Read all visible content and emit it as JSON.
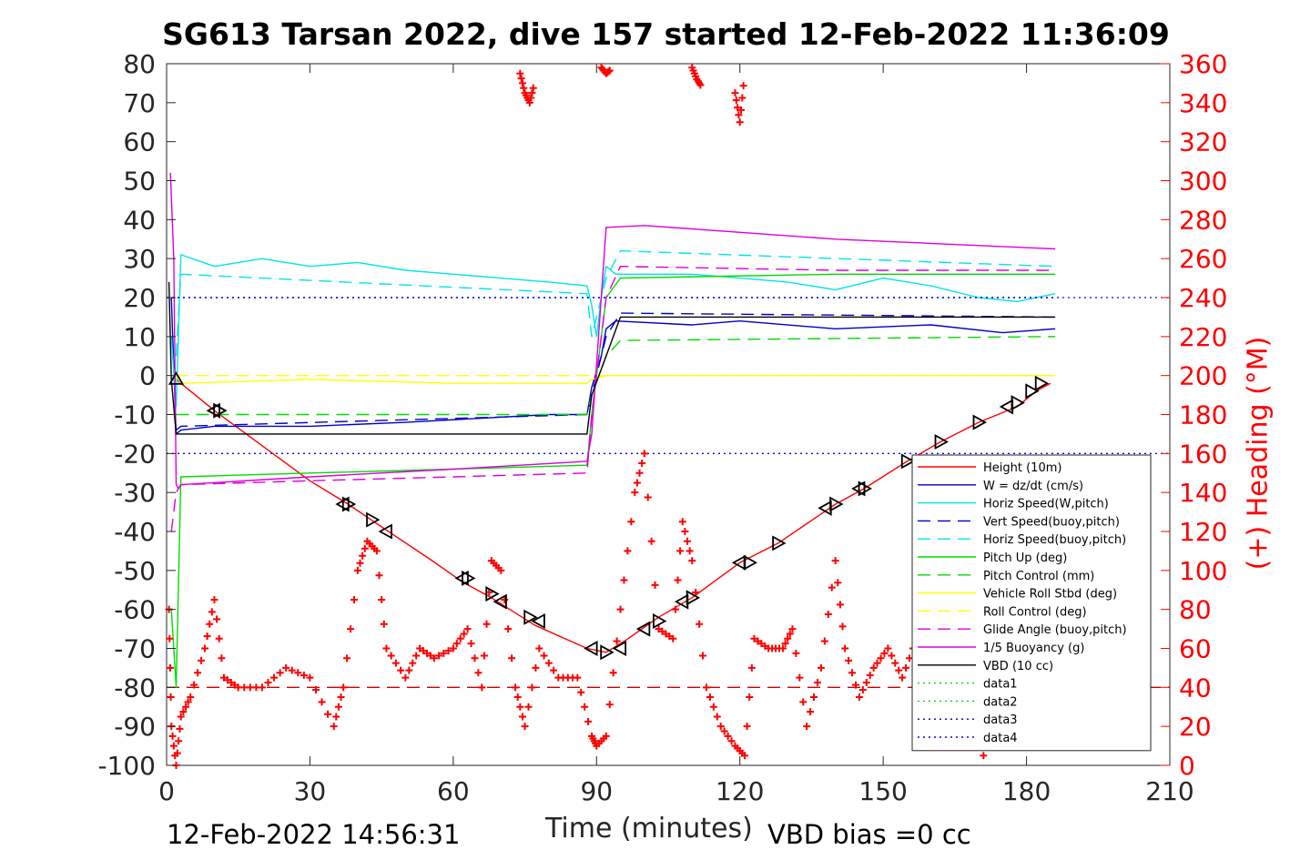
{
  "chart_data": {
    "type": "line",
    "title": "SG613 Tarsan 2022, dive 157 started 12-Feb-2022 11:36:09",
    "xlabel": "Time (minutes)",
    "ylabel": "",
    "y2label": "(+) Heading (°M)",
    "footer_left": "12-Feb-2022 14:56:31",
    "footer_right": "VBD bias =0 cc",
    "xlim": [
      0,
      210
    ],
    "ylim": [
      -100,
      80
    ],
    "y2lim": [
      0,
      360
    ],
    "x_ticks": [
      "0",
      "30",
      "60",
      "90",
      "120",
      "150",
      "180",
      "210"
    ],
    "y_ticks": [
      "80",
      "70",
      "60",
      "50",
      "40",
      "30",
      "20",
      "10",
      "0",
      "-10",
      "-20",
      "-30",
      "-40",
      "-50",
      "-60",
      "-70",
      "-80",
      "-90",
      "-100"
    ],
    "y2_ticks": [
      "360",
      "340",
      "320",
      "300",
      "280",
      "260",
      "240",
      "220",
      "200",
      "180",
      "160",
      "140",
      "120",
      "100",
      "80",
      "60",
      "40",
      "20",
      "0"
    ],
    "legend_position": "bottom-right",
    "series": [
      {
        "name": "Height (10m)",
        "color": "#ff0000",
        "style": "solid",
        "x": [
          2,
          10,
          20,
          30,
          38,
          44,
          55,
          62,
          68,
          77,
          88,
          92,
          96,
          103,
          110,
          120,
          128,
          140,
          146,
          155,
          162,
          170,
          178,
          182,
          185
        ],
        "y": [
          -1,
          -9,
          -18,
          -27,
          -33,
          -38,
          -47,
          -53,
          -57,
          -64,
          -70,
          -71,
          -68,
          -62,
          -57,
          -48,
          -43,
          -33,
          -29,
          -22,
          -17,
          -12,
          -8,
          -4,
          -2
        ]
      },
      {
        "name": "W = dz/dt (cm/s)",
        "color": "#0000cc",
        "style": "solid",
        "x": [
          1,
          2,
          3,
          10,
          30,
          50,
          65,
          80,
          88,
          89,
          91,
          92,
          94,
          110,
          120,
          140,
          160,
          175,
          186
        ],
        "y": [
          20,
          -15,
          -14,
          -13,
          -13,
          -12,
          -11,
          -10,
          -10,
          -3,
          5,
          12,
          14,
          13,
          14,
          12,
          13,
          11,
          12
        ]
      },
      {
        "name": "Horiz Speed(W,pitch)",
        "color": "#00e5e5",
        "style": "solid",
        "x": [
          1,
          2,
          3,
          10,
          20,
          30,
          40,
          50,
          60,
          70,
          80,
          88,
          89,
          90,
          91,
          92,
          94,
          110,
          120,
          130,
          140,
          150,
          160,
          170,
          178,
          186
        ],
        "y": [
          10,
          -8,
          31,
          28,
          30,
          28,
          29,
          27,
          26,
          25,
          24,
          23,
          18,
          10,
          20,
          28,
          26,
          26,
          25,
          24,
          22,
          25,
          23,
          20,
          19,
          21
        ]
      },
      {
        "name": "Vert Speed(buoy,pitch)",
        "color": "#0000cc",
        "style": "dashed",
        "x": [
          2,
          3,
          88,
          89,
          92,
          95,
          186
        ],
        "y": [
          -14,
          -13,
          -10,
          -5,
          10,
          16,
          15
        ]
      },
      {
        "name": "Horiz Speed(buoy,pitch)",
        "color": "#00e5e5",
        "style": "dashed",
        "x": [
          2,
          3,
          88,
          89,
          92,
          95,
          186
        ],
        "y": [
          5,
          26,
          21,
          10,
          25,
          32,
          28
        ]
      },
      {
        "name": "Pitch Up (deg)",
        "color": "#00dd00",
        "style": "solid",
        "x": [
          1,
          2,
          3,
          30,
          60,
          88,
          89,
          92,
          95,
          140,
          186
        ],
        "y": [
          -60,
          -80,
          -26,
          -25,
          -24,
          -23,
          -10,
          20,
          25,
          26,
          26
        ]
      },
      {
        "name": "Pitch Control (mm)",
        "color": "#00dd00",
        "style": "dashed",
        "x": [
          2,
          3,
          88,
          89,
          92,
          95,
          186
        ],
        "y": [
          -10,
          -10,
          -10,
          -5,
          5,
          9,
          10
        ]
      },
      {
        "name": "Vehicle Roll Stbd (deg)",
        "color": "#ffff00",
        "style": "solid",
        "x": [
          2,
          3,
          30,
          60,
          88,
          89,
          92,
          95,
          140,
          186
        ],
        "y": [
          0,
          -2,
          -1,
          -2,
          -2,
          -1,
          0,
          0,
          0,
          0
        ]
      },
      {
        "name": "Roll Control (deg)",
        "color": "#ffff00",
        "style": "dashed",
        "x": [
          2,
          10,
          40,
          70,
          88,
          92,
          120,
          160,
          186
        ],
        "y": [
          0,
          0,
          0,
          0,
          0,
          0,
          0,
          0,
          0
        ]
      },
      {
        "name": "Glide Angle (buoy,pitch)",
        "color": "#dd00dd",
        "style": "dashed",
        "x": [
          1,
          2,
          3,
          30,
          60,
          88,
          89,
          92,
          95,
          140,
          186
        ],
        "y": [
          -40,
          -30,
          -28,
          -27,
          -26,
          -25,
          -10,
          20,
          28,
          27,
          27
        ]
      },
      {
        "name": "1/5 Buoyancy (g)",
        "color": "#dd00dd",
        "style": "solid",
        "x": [
          0.8,
          1.5,
          2,
          2.5,
          3,
          30,
          60,
          88,
          89,
          92,
          100,
          140,
          186
        ],
        "y": [
          52,
          30,
          -28,
          -29,
          -28,
          -26,
          -24,
          -22,
          -15,
          38,
          38.5,
          35,
          32.5
        ]
      },
      {
        "name": "VBD (10 cc)",
        "color": "#000000",
        "style": "solid",
        "x": [
          0.5,
          1,
          2,
          3,
          88,
          89,
          92,
          95,
          186
        ],
        "y": [
          24,
          -1,
          -15,
          -15,
          -15,
          -5,
          5,
          15,
          15
        ]
      },
      {
        "name": "data1",
        "color": "#00dd00",
        "style": "dotted",
        "x": [],
        "y": []
      },
      {
        "name": "data2",
        "color": "#00dd00",
        "style": "dotted",
        "x": [],
        "y": []
      },
      {
        "name": "data3",
        "color": "#000088",
        "style": "dotted",
        "x": [],
        "y": []
      },
      {
        "name": "data4",
        "color": "#0000ff",
        "style": "dotted",
        "x": [
          0,
          186
        ],
        "y": [
          20,
          20
        ]
      }
    ],
    "reference_lines": [
      {
        "kind": "horizontal",
        "y": 20,
        "color": "#0000ff",
        "style": "dotted"
      },
      {
        "kind": "horizontal",
        "y": -20,
        "color": "#0000ff",
        "style": "dotted"
      },
      {
        "kind": "horizontal",
        "y": -80,
        "color": "#cc0000",
        "style": "dashed"
      }
    ],
    "heading": {
      "axis": "right",
      "color": "#ff0000",
      "marker": "plus",
      "x": [
        0.5,
        1,
        2,
        3,
        5,
        8,
        10,
        12,
        15,
        20,
        25,
        30,
        35,
        37,
        40,
        42,
        44,
        46,
        50,
        53,
        56,
        60,
        63,
        66,
        68,
        70,
        73,
        75,
        78,
        82,
        86,
        89,
        90,
        92,
        95,
        98,
        100,
        103,
        106,
        108,
        110,
        113,
        116,
        119,
        121,
        123,
        126,
        129,
        131,
        134,
        137,
        140,
        142,
        145,
        148,
        151,
        154,
        157,
        160
      ],
      "y": [
        80,
        20,
        0,
        25,
        35,
        60,
        85,
        45,
        40,
        40,
        50,
        45,
        20,
        40,
        100,
        115,
        110,
        60,
        45,
        60,
        55,
        60,
        70,
        40,
        105,
        100,
        40,
        20,
        60,
        45,
        45,
        15,
        10,
        15,
        80,
        140,
        160,
        70,
        65,
        125,
        105,
        40,
        20,
        10,
        5,
        65,
        60,
        60,
        70,
        20,
        50,
        105,
        60,
        35,
        50,
        60,
        45,
        65,
        35
      ]
    },
    "heading_wrapped": [
      {
        "x": [
          74,
          75,
          76,
          77
        ],
        "y": [
          355,
          345,
          340,
          350
        ]
      },
      {
        "x": [
          91,
          92,
          93
        ],
        "y": [
          358,
          355,
          357
        ]
      },
      {
        "x": [
          110,
          111,
          112
        ],
        "y": [
          358,
          352,
          348
        ]
      },
      {
        "x": [
          119,
          120,
          121
        ],
        "y": [
          345,
          330,
          355
        ]
      }
    ],
    "heading_extra": [
      {
        "x": 171,
        "y": 5
      }
    ],
    "pitch_markers": {
      "up_triangle": [
        {
          "x": 2,
          "y": -1
        }
      ],
      "left_triangle": [
        {
          "x": 10,
          "y": -9
        },
        {
          "x": 37,
          "y": -33
        },
        {
          "x": 46,
          "y": -40
        },
        {
          "x": 62,
          "y": -52
        },
        {
          "x": 70,
          "y": -58
        },
        {
          "x": 78,
          "y": -63
        },
        {
          "x": 89,
          "y": -70
        },
        {
          "x": 95,
          "y": -70
        },
        {
          "x": 100,
          "y": -65
        },
        {
          "x": 108,
          "y": -58
        },
        {
          "x": 120,
          "y": -48
        },
        {
          "x": 138,
          "y": -34
        },
        {
          "x": 145,
          "y": -29
        },
        {
          "x": 176,
          "y": -8
        }
      ],
      "right_triangle": [
        {
          "x": 11,
          "y": -9
        },
        {
          "x": 38,
          "y": -33
        },
        {
          "x": 43,
          "y": -37
        },
        {
          "x": 63,
          "y": -52
        },
        {
          "x": 68,
          "y": -56
        },
        {
          "x": 76,
          "y": -62
        },
        {
          "x": 92,
          "y": -71
        },
        {
          "x": 103,
          "y": -63
        },
        {
          "x": 110,
          "y": -57
        },
        {
          "x": 122,
          "y": -48
        },
        {
          "x": 128,
          "y": -43
        },
        {
          "x": 140,
          "y": -33
        },
        {
          "x": 146,
          "y": -29
        },
        {
          "x": 155,
          "y": -22
        },
        {
          "x": 162,
          "y": -17
        },
        {
          "x": 170,
          "y": -12
        },
        {
          "x": 178,
          "y": -7
        },
        {
          "x": 181,
          "y": -4
        },
        {
          "x": 183,
          "y": -2
        }
      ]
    }
  }
}
